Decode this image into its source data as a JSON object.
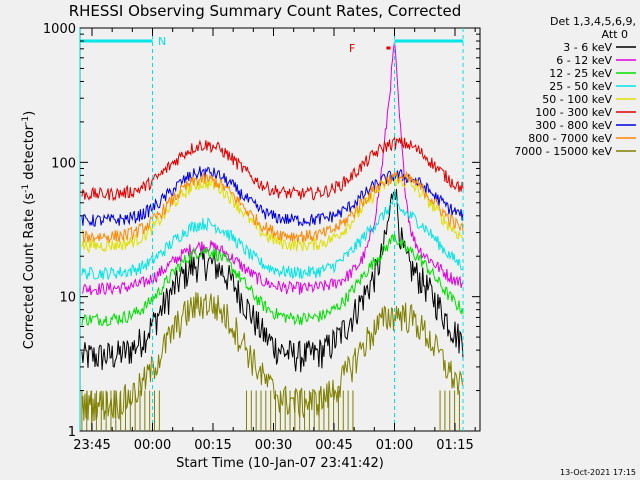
{
  "chart_data": {
    "type": "line",
    "title": "RHESSI Observing Summary Count Rates, Corrected",
    "xlabel": "Start Time (10-Jan-07 23:41:42)",
    "ylabel_main": "Corrected Count Rate (s",
    "ylabel_sup1": "-1",
    "ylabel_mid": " detector",
    "ylabel_sup2": "-1",
    "ylabel_end": ")",
    "y_scale": "log",
    "ylim": [
      1,
      1000
    ],
    "x_ticks": [
      "23:45",
      "00:00",
      "00:15",
      "00:30",
      "00:45",
      "01:00",
      "01:15"
    ],
    "y_ticks": [
      "1",
      "10",
      "100",
      "1000"
    ],
    "legend_header": [
      "Det 1,3,4,5,6,9,",
      "Att 0"
    ],
    "legend_position": "right",
    "footer_date": "13-Oct-2021 17:15",
    "flags": [
      {
        "label": "N",
        "color": "#00e5e5",
        "segments": [
          [
            "23:42",
            "00:00"
          ],
          [
            "01:00",
            "01:17"
          ]
        ]
      },
      {
        "label": "F",
        "color": "#e00000",
        "segments": [
          [
            "00:58",
            "00:59"
          ]
        ]
      }
    ],
    "series": [
      {
        "name": "3 - 6 keV",
        "color": "#000000",
        "baseline": 3.6,
        "peak1": 18,
        "peak2": 17,
        "flare_peak": 80
      },
      {
        "name": "6 - 12 keV",
        "color": "#e000e0",
        "baseline": 11.5,
        "peak1": 24,
        "peak2": 25,
        "flare_peak": 800
      },
      {
        "name": "12 - 25 keV",
        "color": "#00e000",
        "baseline": 6.8,
        "peak1": 22,
        "peak2": 23,
        "flare_peak": 30
      },
      {
        "name": "25 - 50 keV",
        "color": "#00e5e5",
        "baseline": 15,
        "peak1": 35,
        "peak2": 42,
        "flare_peak": 55
      },
      {
        "name": "50 - 100 keV",
        "color": "#e0e000",
        "baseline": 24,
        "peak1": 70,
        "peak2": 72,
        "flare_peak": 75
      },
      {
        "name": "100 - 300 keV",
        "color": "#e00000",
        "baseline": 58,
        "peak1": 135,
        "peak2": 140,
        "flare_peak": 140
      },
      {
        "name": "300 - 800 keV",
        "color": "#0000e0",
        "baseline": 37,
        "peak1": 85,
        "peak2": 80,
        "flare_peak": 80
      },
      {
        "name": "800 - 7000 keV",
        "color": "#ff8800",
        "baseline": 28,
        "peak1": 75,
        "peak2": 78,
        "flare_peak": 78
      },
      {
        "name": "7000 - 15000 keV",
        "color": "#808000",
        "baseline": 1.6,
        "peak1": 9,
        "peak2": 7.5,
        "flare_peak": 7.5
      }
    ]
  }
}
